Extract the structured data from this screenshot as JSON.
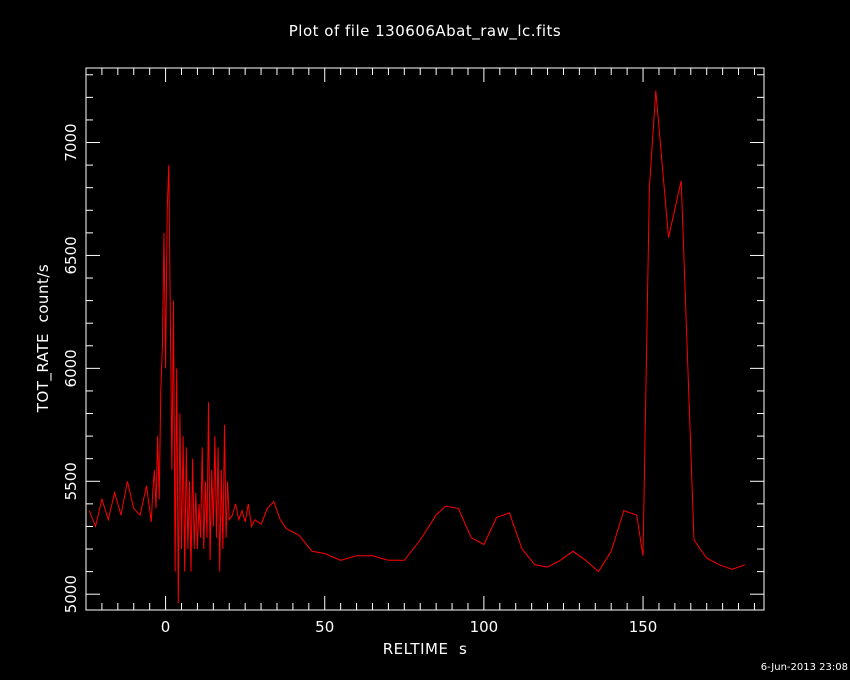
{
  "chart_data": {
    "type": "line",
    "title": "Plot of file 130606Abat_raw_lc.fits",
    "xlabel": "RELTIME  s",
    "ylabel": "TOT_RATE  count/s",
    "xlim": [
      -25,
      188
    ],
    "ylim": [
      4930,
      7330
    ],
    "x_ticks": [
      0,
      50,
      100,
      150
    ],
    "y_ticks": [
      5000,
      5500,
      6000,
      6500,
      7000
    ],
    "grid": false,
    "line_color": "#ff0000",
    "series": [
      {
        "x": [
          -24,
          -22,
          -20,
          -18,
          -16,
          -14,
          -12,
          -10,
          -8,
          -6,
          -4.5,
          -4,
          -3.5,
          -3,
          -2.5,
          -2,
          -1.5,
          -1,
          -0.5,
          0,
          0.5,
          1,
          1.5,
          2,
          2.5,
          3,
          3.5,
          4,
          4.5,
          5,
          5.5,
          6,
          6.5,
          7,
          7.5,
          8,
          8.5,
          9,
          9.5,
          10,
          10.5,
          11,
          11.5,
          12,
          12.5,
          13,
          13.5,
          14,
          14.5,
          15,
          15.5,
          16,
          16.5,
          17,
          17.5,
          18,
          18.5,
          19,
          19.5,
          20,
          21,
          22,
          23,
          24,
          25,
          26,
          27,
          28,
          30,
          32,
          34,
          36,
          38,
          42,
          46,
          50,
          55,
          60,
          65,
          70,
          75,
          80,
          85,
          88,
          92,
          96,
          100,
          104,
          108,
          112,
          116,
          120,
          124,
          128,
          132,
          136,
          140,
          144,
          148,
          150,
          152,
          154,
          158,
          162,
          166,
          170,
          174,
          178,
          182
        ],
        "y": [
          5370,
          5300,
          5420,
          5330,
          5450,
          5350,
          5500,
          5380,
          5350,
          5480,
          5320,
          5460,
          5550,
          5380,
          5700,
          5420,
          5900,
          6100,
          6600,
          6000,
          6700,
          6900,
          6200,
          5550,
          6300,
          5100,
          6000,
          4960,
          5800,
          5200,
          5700,
          5100,
          5650,
          5200,
          5500,
          5100,
          5600,
          5200,
          5450,
          5200,
          5400,
          5250,
          5650,
          5200,
          5500,
          5250,
          5850,
          5150,
          5550,
          5300,
          5700,
          5250,
          5650,
          5100,
          5550,
          5200,
          5750,
          5250,
          5500,
          5330,
          5350,
          5400,
          5330,
          5370,
          5320,
          5400,
          5300,
          5330,
          5310,
          5380,
          5410,
          5330,
          5290,
          5260,
          5190,
          5180,
          5150,
          5170,
          5170,
          5150,
          5150,
          5240,
          5350,
          5390,
          5380,
          5250,
          5220,
          5340,
          5360,
          5200,
          5130,
          5120,
          5150,
          5190,
          5150,
          5100,
          5190,
          5370,
          5350,
          5170,
          6800,
          7230,
          6580,
          6830,
          5240,
          5160,
          5130,
          5110,
          5130
        ]
      }
    ]
  },
  "timestamp": "6-Jun-2013 23:08"
}
